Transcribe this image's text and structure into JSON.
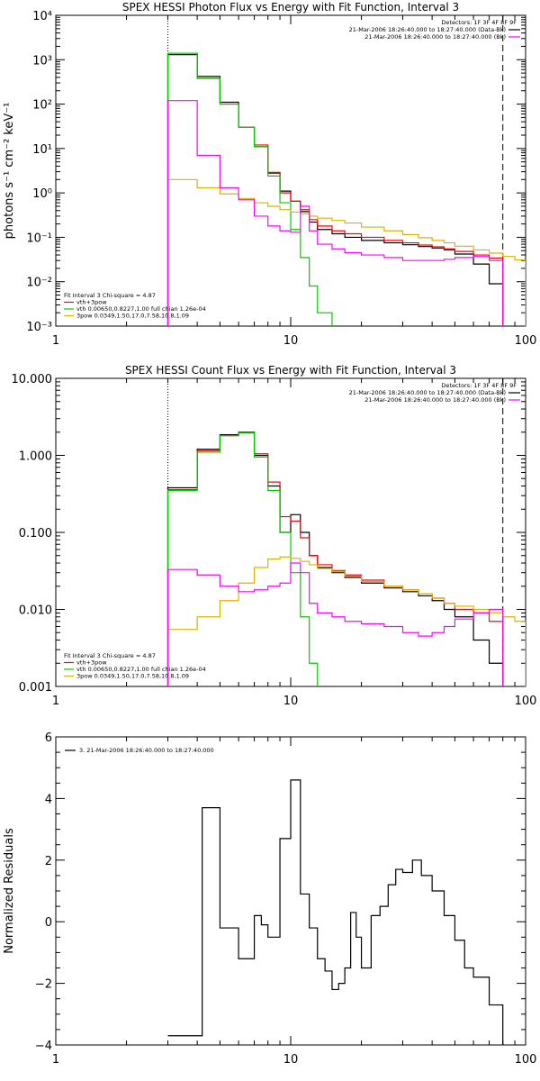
{
  "chart_data": [
    {
      "type": "line",
      "title": "SPEX HESSI Photon Flux vs Energy with Fit Function, Interval 3",
      "ylabel": "photons s⁻¹ cm⁻² keV⁻¹",
      "xscale": "log",
      "yscale": "log",
      "xlim": [
        1,
        100
      ],
      "ylim": [
        0.001,
        10000
      ],
      "xticks": [
        1,
        10,
        100
      ],
      "xtick_labels": [
        "1",
        "10",
        "100"
      ],
      "yticks": [
        0.001,
        0.01,
        0.1,
        1,
        10,
        100,
        1000,
        10000
      ],
      "ytick_labels": [
        "10⁻³",
        "10⁻²",
        "10⁻¹",
        "10⁰",
        "10¹",
        "10²",
        "10³",
        "10⁴"
      ],
      "vlines": [
        {
          "x": 3,
          "style": "dotted"
        },
        {
          "x": 80,
          "style": "dashed"
        }
      ],
      "legend_top_right": {
        "header": "Detectors: 1F 3F 4F 8F 9F",
        "entries": [
          {
            "text": "21-Mar-2006 18:26:40.000 to 18:27:40.000 (Data-Bk)",
            "color": "#000000"
          },
          {
            "text": "21-Mar-2006 18:26:40.000 to 18:27:40.000 (Bk)",
            "color": "#ff00ff"
          }
        ]
      },
      "legend_bottom_left": {
        "header": "Fit Interval 3   Chi-square = 4.87",
        "entries": [
          {
            "text": "vth+3pow",
            "color": "#ff0000"
          },
          {
            "text": "vth 0.00650,0.8227,1.00   full chian 1.26e-04",
            "color": "#00cc00"
          },
          {
            "text": "3pow 0.0349,1.50,17.0,7.58,10.8,1.09",
            "color": "#e0b000"
          }
        ]
      },
      "series": [
        {
          "color": "#000000",
          "edges": [
            3,
            4,
            5,
            6,
            7,
            8,
            9,
            10,
            11,
            12,
            13,
            15,
            17,
            20,
            25,
            30,
            35,
            40,
            45,
            50,
            60,
            70,
            80
          ],
          "values": [
            1300,
            420,
            110,
            30,
            11,
            2.8,
            1.1,
            0.65,
            0.38,
            0.22,
            0.15,
            0.12,
            0.1,
            0.085,
            0.075,
            0.068,
            0.062,
            0.057,
            0.052,
            0.042,
            0.025,
            0.009
          ]
        },
        {
          "color": "#ff0000",
          "edges": [
            3,
            4,
            5,
            6,
            7,
            8,
            9,
            10,
            11,
            12,
            13,
            15,
            17,
            20,
            25,
            30,
            35,
            40,
            45,
            50,
            60,
            70,
            80
          ],
          "values": [
            1400,
            380,
            100,
            30,
            12,
            2.9,
            1.0,
            0.65,
            0.42,
            0.25,
            0.18,
            0.14,
            0.12,
            0.1,
            0.085,
            0.075,
            0.067,
            0.061,
            0.055,
            0.048,
            0.04,
            0.034
          ]
        },
        {
          "color": "#00cc00",
          "edges": [
            3,
            4,
            5,
            6,
            7,
            8,
            9,
            10,
            11,
            12,
            13,
            15
          ],
          "values": [
            1400,
            380,
            100,
            30,
            11,
            2.4,
            0.6,
            0.15,
            0.035,
            0.008,
            0.002
          ]
        },
        {
          "color": "#e0b000",
          "edges": [
            3,
            4,
            5,
            6,
            7,
            8,
            9,
            10,
            11,
            12,
            13,
            15,
            17,
            20,
            25,
            30,
            35,
            40,
            45,
            50,
            60,
            70,
            80,
            90,
            100
          ],
          "values": [
            2,
            1.3,
            0.95,
            0.75,
            0.6,
            0.5,
            0.42,
            0.37,
            0.34,
            0.3,
            0.27,
            0.24,
            0.21,
            0.17,
            0.14,
            0.115,
            0.098,
            0.085,
            0.075,
            0.063,
            0.052,
            0.044,
            0.037,
            0.031
          ]
        },
        {
          "color": "#ff00ff",
          "edges": [
            3,
            4,
            5,
            6,
            7,
            8,
            9,
            10,
            11,
            12,
            13,
            15,
            17,
            20,
            25,
            30,
            35,
            40,
            45,
            50,
            60,
            70,
            80
          ],
          "values": [
            120,
            7,
            1.3,
            0.7,
            0.3,
            0.18,
            0.14,
            0.13,
            0.5,
            0.14,
            0.07,
            0.055,
            0.045,
            0.04,
            0.035,
            0.03,
            0.03,
            0.03,
            0.032,
            0.035,
            0.037,
            0.03
          ]
        }
      ]
    },
    {
      "type": "line",
      "title": "SPEX HESSI Count Flux vs Energy with Fit Function, Interval 3",
      "xscale": "log",
      "yscale": "log",
      "xlim": [
        1,
        100
      ],
      "ylim": [
        0.001,
        10
      ],
      "xticks": [
        1,
        10,
        100
      ],
      "xtick_labels": [
        "1",
        "10",
        "100"
      ],
      "yticks": [
        0.001,
        0.01,
        0.1,
        1,
        10
      ],
      "ytick_labels": [
        "0.001",
        "0.010",
        "0.100",
        "1.000",
        "10.000"
      ],
      "vlines": [
        {
          "x": 3,
          "style": "dotted"
        },
        {
          "x": 80,
          "style": "dashed"
        }
      ],
      "legend_top_right": {
        "header": "Detectors: 1F 3F 4F 8F 9F",
        "entries": [
          {
            "text": "21-Mar-2006 18:26:40.000 to 18:27:40.000 (Data-Bk)",
            "color": "#000000"
          },
          {
            "text": "21-Mar-2006 18:26:40.000 to 18:27:40.000 (Bk)",
            "color": "#ff00ff"
          }
        ]
      },
      "legend_bottom_left": {
        "header": "Fit Interval 3   Chi-square = 4.87",
        "entries": [
          {
            "text": "vth+3pow",
            "color": "#ff0000"
          },
          {
            "text": "vth 0.00650,0.8227,1.00   full chian 1.26e-04",
            "color": "#00cc00"
          },
          {
            "text": "3pow 0.0349,1.50,17.0,7.58,10.8,1.09",
            "color": "#e0b000"
          }
        ]
      },
      "series": [
        {
          "color": "#000000",
          "edges": [
            3,
            4,
            5,
            6,
            7,
            8,
            9,
            10,
            11,
            12,
            13,
            15,
            17,
            20,
            25,
            30,
            35,
            40,
            45,
            50,
            60,
            70,
            80
          ],
          "values": [
            0.38,
            1.2,
            1.85,
            2.0,
            1.0,
            0.4,
            0.1,
            0.17,
            0.1,
            0.05,
            0.035,
            0.03,
            0.026,
            0.022,
            0.019,
            0.017,
            0.015,
            0.013,
            0.01,
            0.008,
            0.004,
            0.002
          ]
        },
        {
          "color": "#ff0000",
          "edges": [
            3,
            4,
            5,
            6,
            7,
            8,
            9,
            10,
            11,
            12,
            13,
            15,
            17,
            20,
            25,
            30,
            35,
            40,
            45,
            50,
            60,
            70,
            80
          ],
          "values": [
            0.36,
            1.15,
            1.8,
            2.0,
            1.05,
            0.45,
            0.16,
            0.14,
            0.085,
            0.05,
            0.038,
            0.032,
            0.028,
            0.024,
            0.02,
            0.018,
            0.016,
            0.014,
            0.012,
            0.01,
            0.009,
            0.007
          ]
        },
        {
          "color": "#00cc00",
          "edges": [
            3,
            4,
            5,
            6,
            7,
            8,
            9,
            10,
            11,
            12,
            13
          ],
          "values": [
            0.35,
            1.1,
            1.8,
            1.95,
            0.95,
            0.35,
            0.1,
            0.03,
            0.008,
            0.002
          ]
        },
        {
          "color": "#e0b000",
          "edges": [
            3,
            4,
            5,
            6,
            7,
            8,
            9,
            10,
            11,
            12,
            13,
            15,
            17,
            20,
            25,
            30,
            35,
            40,
            45,
            50,
            60,
            70,
            80,
            90,
            100
          ],
          "values": [
            0.0055,
            0.008,
            0.013,
            0.022,
            0.035,
            0.045,
            0.048,
            0.046,
            0.042,
            0.038,
            0.034,
            0.031,
            0.027,
            0.023,
            0.02,
            0.018,
            0.016,
            0.014,
            0.012,
            0.011,
            0.01,
            0.009,
            0.008,
            0.007
          ]
        },
        {
          "color": "#ff00ff",
          "edges": [
            3,
            4,
            5,
            6,
            7,
            8,
            9,
            10,
            11,
            12,
            13,
            15,
            17,
            20,
            25,
            30,
            35,
            40,
            45,
            50,
            60,
            70,
            80
          ],
          "values": [
            0.033,
            0.028,
            0.02,
            0.017,
            0.018,
            0.02,
            0.022,
            0.04,
            0.03,
            0.012,
            0.009,
            0.008,
            0.007,
            0.0065,
            0.006,
            0.005,
            0.0045,
            0.005,
            0.006,
            0.0075,
            0.009,
            0.01
          ]
        }
      ]
    },
    {
      "type": "line",
      "ylabel": "Normalized Residuals",
      "xscale": "log",
      "yscale": "linear",
      "xlim": [
        1,
        100
      ],
      "ylim": [
        -4,
        6
      ],
      "xticks": [
        1,
        10,
        100
      ],
      "xtick_labels": [
        "1",
        "10",
        "100"
      ],
      "yticks": [
        -4,
        -2,
        0,
        2,
        4,
        6
      ],
      "ytick_labels": [
        "−4",
        "−2",
        "0",
        "2",
        "4",
        "6"
      ],
      "legend_top_left": {
        "entries": [
          {
            "text": "3. 21-Mar-2006 18:26:40.000 to 18:27:40.000",
            "color": "#000000"
          }
        ]
      },
      "series": [
        {
          "color": "#000000",
          "edges": [
            3,
            4.2,
            5,
            6,
            7,
            7.5,
            8,
            9,
            10,
            11,
            12,
            13,
            14,
            15,
            16,
            17,
            18,
            19,
            20,
            22,
            24,
            26,
            28,
            30,
            33,
            36,
            40,
            45,
            50,
            55,
            60,
            70,
            80
          ],
          "values": [
            -3.7,
            3.7,
            -0.2,
            -1.2,
            0.2,
            -0.1,
            -0.5,
            2.7,
            4.6,
            0.9,
            -0.2,
            -1.2,
            -1.6,
            -2.2,
            -2.0,
            -1.5,
            0.3,
            -0.5,
            -1.5,
            0.2,
            0.5,
            1.2,
            1.7,
            1.6,
            2.0,
            1.5,
            1.0,
            0.2,
            -0.6,
            -1.5,
            -1.8,
            -2.7
          ]
        }
      ]
    }
  ]
}
